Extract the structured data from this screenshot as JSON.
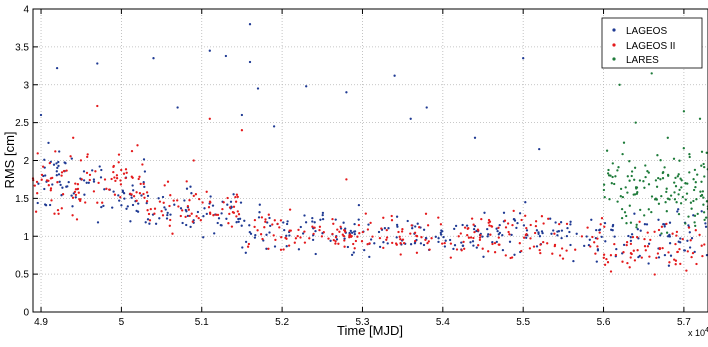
{
  "chart_data": {
    "type": "scatter",
    "xlabel": "Time [MJD]",
    "ylabel": "RMS [cm]",
    "x_multiplier_label": "x 10",
    "x_multiplier_exponent": "4",
    "xlim": [
      4.89,
      5.73
    ],
    "ylim": [
      0,
      4
    ],
    "xticks": [
      4.9,
      5.0,
      5.1,
      5.2,
      5.3,
      5.4,
      5.5,
      5.6,
      5.7
    ],
    "xtick_labels": [
      "4.9",
      "5",
      "5.1",
      "5.2",
      "5.3",
      "5.4",
      "5.5",
      "5.6",
      "5.7"
    ],
    "yticks": [
      0,
      0.5,
      1,
      1.5,
      2,
      2.5,
      3,
      3.5,
      4
    ],
    "ytick_labels": [
      "0",
      "0.5",
      "1",
      "1.5",
      "2",
      "2.5",
      "3",
      "3.5",
      "4"
    ],
    "grid": true,
    "legend_position": "top-right",
    "series": [
      {
        "name": "LAGEOS",
        "color": "#1f3a93",
        "segments": [
          {
            "x0": 4.89,
            "x1": 4.95,
            "mean": 1.75,
            "spread": 0.35,
            "n": 40
          },
          {
            "x0": 4.95,
            "x1": 5.03,
            "mean": 1.6,
            "spread": 0.3,
            "n": 45
          },
          {
            "x0": 5.03,
            "x1": 5.15,
            "mean": 1.3,
            "spread": 0.25,
            "n": 60
          },
          {
            "x0": 5.15,
            "x1": 5.3,
            "mean": 1.1,
            "spread": 0.25,
            "n": 70
          },
          {
            "x0": 5.3,
            "x1": 5.45,
            "mean": 1.0,
            "spread": 0.2,
            "n": 70
          },
          {
            "x0": 5.45,
            "x1": 5.6,
            "mean": 1.05,
            "spread": 0.25,
            "n": 70
          },
          {
            "x0": 5.6,
            "x1": 5.73,
            "mean": 1.0,
            "spread": 0.3,
            "n": 60
          }
        ],
        "outliers": [
          [
            4.92,
            3.22
          ],
          [
            4.97,
            3.28
          ],
          [
            5.04,
            3.35
          ],
          [
            5.11,
            3.45
          ],
          [
            5.13,
            3.38
          ],
          [
            5.16,
            3.8
          ],
          [
            5.16,
            3.3
          ],
          [
            5.17,
            2.95
          ],
          [
            5.15,
            2.6
          ],
          [
            5.23,
            2.98
          ],
          [
            5.34,
            3.12
          ],
          [
            5.36,
            2.55
          ],
          [
            5.5,
            3.35
          ],
          [
            5.07,
            2.7
          ],
          [
            5.19,
            2.45
          ],
          [
            4.9,
            2.6
          ],
          [
            5.28,
            2.9
          ],
          [
            5.38,
            2.7
          ],
          [
            5.44,
            2.3
          ],
          [
            5.52,
            2.15
          ]
        ]
      },
      {
        "name": "LAGEOS II",
        "color": "#e41a1c",
        "segments": [
          {
            "x0": 4.89,
            "x1": 4.95,
            "mean": 1.65,
            "spread": 0.35,
            "n": 45
          },
          {
            "x0": 4.95,
            "x1": 5.03,
            "mean": 1.7,
            "spread": 0.3,
            "n": 50
          },
          {
            "x0": 5.03,
            "x1": 5.15,
            "mean": 1.35,
            "spread": 0.25,
            "n": 65
          },
          {
            "x0": 5.15,
            "x1": 5.3,
            "mean": 1.05,
            "spread": 0.2,
            "n": 75
          },
          {
            "x0": 5.3,
            "x1": 5.45,
            "mean": 1.0,
            "spread": 0.2,
            "n": 75
          },
          {
            "x0": 5.45,
            "x1": 5.6,
            "mean": 1.0,
            "spread": 0.25,
            "n": 70
          },
          {
            "x0": 5.6,
            "x1": 5.73,
            "mean": 0.85,
            "spread": 0.25,
            "n": 70
          }
        ],
        "outliers": [
          [
            4.97,
            2.72
          ],
          [
            5.11,
            2.55
          ],
          [
            4.94,
            2.3
          ],
          [
            5.02,
            2.2
          ],
          [
            5.09,
            2.0
          ],
          [
            5.15,
            2.4
          ],
          [
            5.28,
            1.75
          ],
          [
            5.72,
            3.3
          ]
        ]
      },
      {
        "name": "LARES",
        "color": "#1e7b3a",
        "segments": [
          {
            "x0": 5.6,
            "x1": 5.73,
            "mean": 1.65,
            "spread": 0.5,
            "n": 150
          }
        ],
        "outliers": [
          [
            5.62,
            3.0
          ],
          [
            5.66,
            3.15
          ],
          [
            5.7,
            2.65
          ],
          [
            5.72,
            2.55
          ],
          [
            5.64,
            2.5
          ],
          [
            5.68,
            2.3
          ]
        ]
      }
    ]
  }
}
